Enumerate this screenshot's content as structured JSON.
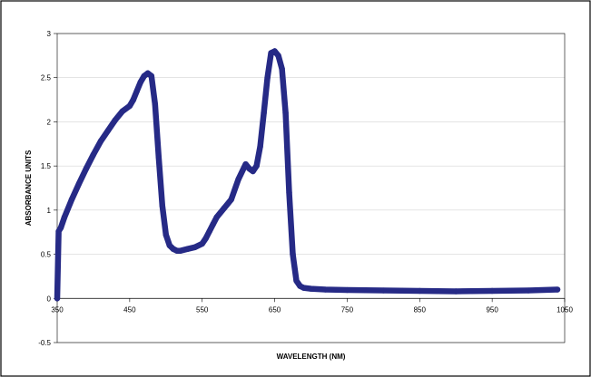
{
  "chart_data": {
    "type": "line",
    "title": "",
    "xlabel": "WAVELENGTH (NM)",
    "ylabel": "ABSORBANCE UNITS",
    "xlim": [
      350,
      1050
    ],
    "ylim": [
      -0.5,
      3
    ],
    "x_ticks": [
      350,
      450,
      550,
      650,
      750,
      850,
      950,
      1050
    ],
    "y_ticks": [
      -0.5,
      0,
      0.5,
      1,
      1.5,
      2,
      2.5,
      3
    ],
    "y_tick_labels": [
      "-0.5",
      "0",
      "0.5",
      "1",
      "1.5",
      "2",
      "2.5",
      "3"
    ],
    "grid": "horizontal",
    "legend": "none",
    "colors": {
      "series": "#262a86",
      "plot_bg": "#ffffff",
      "frame": "#000000",
      "grid": "#d4d4d4"
    },
    "series": [
      {
        "x": [
          350,
          352,
          355,
          360,
          370,
          380,
          390,
          400,
          410,
          420,
          430,
          440,
          450,
          455,
          460,
          465,
          470,
          475,
          480,
          485,
          490,
          495,
          500,
          505,
          510,
          515,
          520,
          530,
          540,
          550,
          555,
          560,
          565,
          570,
          580,
          590,
          600,
          610,
          615,
          620,
          625,
          630,
          635,
          640,
          645,
          650,
          655,
          660,
          665,
          670,
          675,
          680,
          685,
          690,
          700,
          720,
          750,
          800,
          850,
          900,
          950,
          1000,
          1040
        ],
        "y": [
          0,
          0.76,
          0.8,
          0.92,
          1.12,
          1.3,
          1.47,
          1.63,
          1.78,
          1.9,
          2.02,
          2.12,
          2.18,
          2.25,
          2.35,
          2.45,
          2.52,
          2.55,
          2.52,
          2.2,
          1.6,
          1.05,
          0.72,
          0.6,
          0.56,
          0.54,
          0.54,
          0.56,
          0.58,
          0.62,
          0.68,
          0.76,
          0.84,
          0.92,
          1.02,
          1.12,
          1.35,
          1.52,
          1.47,
          1.44,
          1.5,
          1.72,
          2.1,
          2.5,
          2.78,
          2.8,
          2.75,
          2.6,
          2.1,
          1.2,
          0.5,
          0.2,
          0.14,
          0.12,
          0.11,
          0.1,
          0.095,
          0.09,
          0.085,
          0.08,
          0.085,
          0.09,
          0.1
        ]
      }
    ]
  }
}
